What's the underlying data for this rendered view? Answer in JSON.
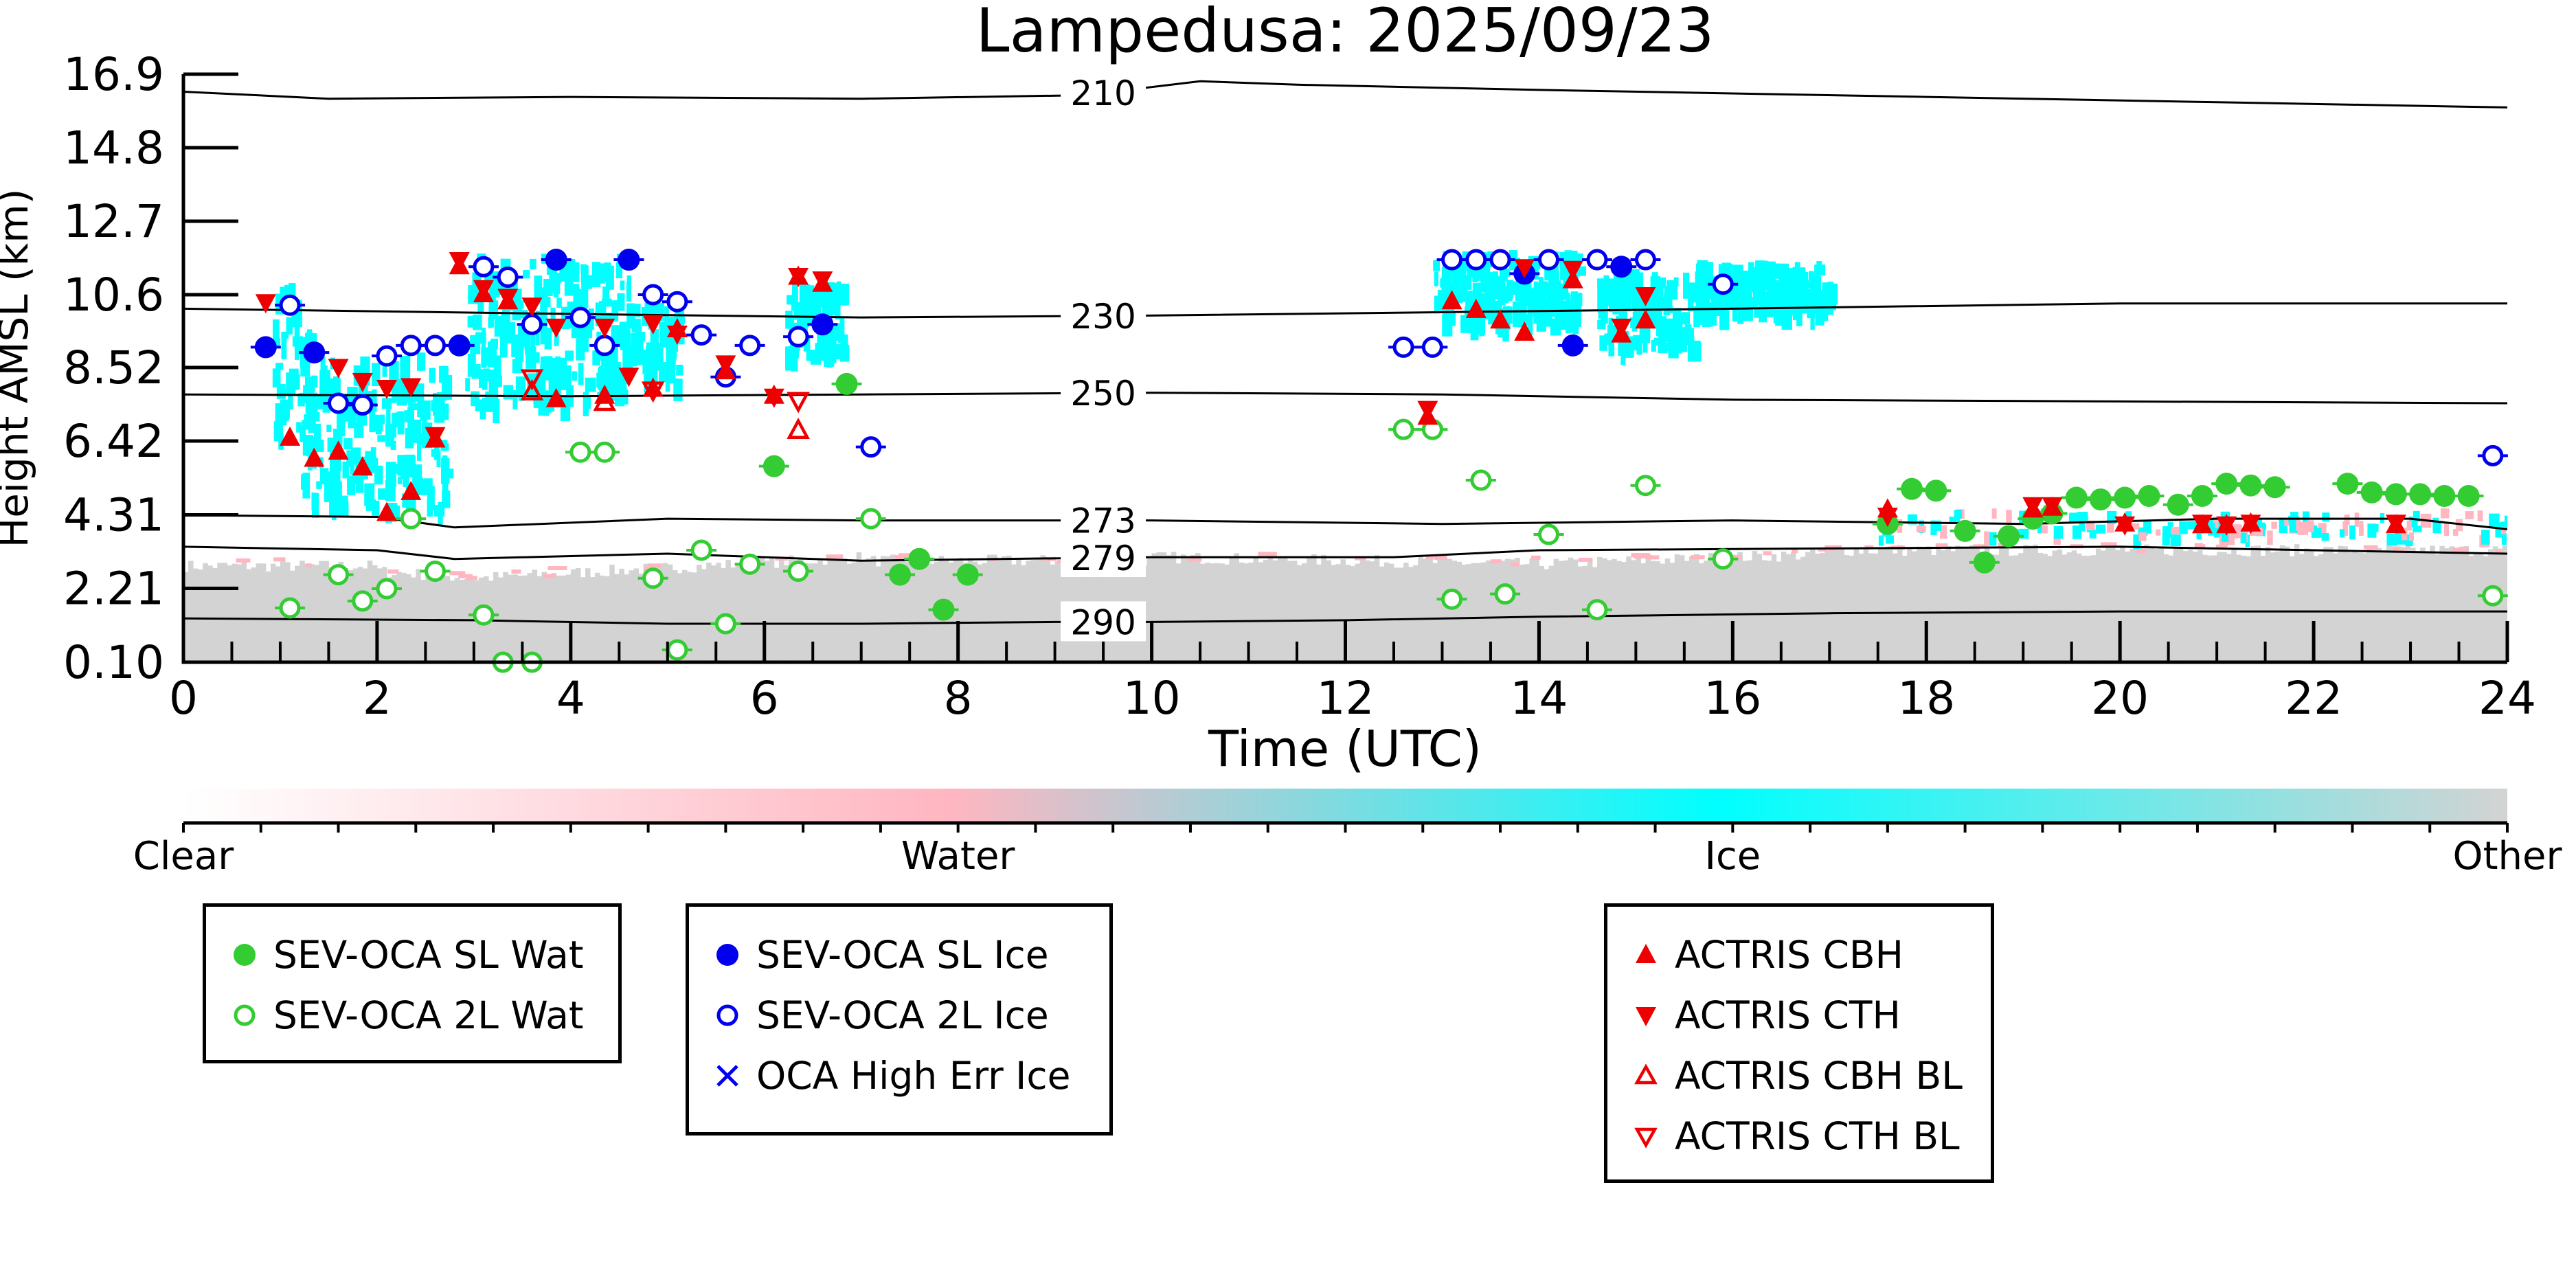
{
  "chart_data": {
    "type": "scatter",
    "title": "Lampedusa: 2025/09/23",
    "xlabel": "Time (UTC)",
    "ylabel": "Height AMSL (km)",
    "xlim": [
      0,
      24
    ],
    "ylim": [
      0.1,
      16.9
    ],
    "xticks": [
      0,
      2,
      4,
      6,
      8,
      10,
      12,
      14,
      16,
      18,
      20,
      22,
      24
    ],
    "yticks": [
      0.1,
      2.21,
      4.31,
      6.42,
      8.52,
      10.6,
      12.7,
      14.8,
      16.9
    ],
    "ytick_labels": [
      "0.10",
      "2.21",
      "4.31",
      "6.42",
      "8.52",
      "10.6",
      "12.7",
      "14.8",
      "16.9"
    ],
    "colorbar": {
      "labels": [
        "Clear",
        "Water",
        "Ice",
        "Other"
      ],
      "colors": [
        "#ffffff",
        "#ffb6c1",
        "#00ffff",
        "#d3d3d3"
      ]
    },
    "isotherms": [
      {
        "label": "210",
        "points": [
          [
            0,
            16.4
          ],
          [
            1.5,
            16.2
          ],
          [
            4,
            16.25
          ],
          [
            7,
            16.2
          ],
          [
            9.3,
            16.3
          ],
          [
            10.5,
            16.7
          ],
          [
            11.5,
            16.6
          ],
          [
            14,
            16.45
          ],
          [
            18,
            16.25
          ],
          [
            21,
            16.1
          ],
          [
            24,
            15.95
          ]
        ]
      },
      {
        "label": "230",
        "points": [
          [
            0,
            10.2
          ],
          [
            4,
            10.05
          ],
          [
            7,
            9.95
          ],
          [
            9.8,
            10.0
          ],
          [
            13,
            10.1
          ],
          [
            16,
            10.2
          ],
          [
            20,
            10.35
          ],
          [
            24,
            10.35
          ]
        ]
      },
      {
        "label": "250",
        "points": [
          [
            0,
            7.75
          ],
          [
            4,
            7.7
          ],
          [
            7,
            7.75
          ],
          [
            10,
            7.8
          ],
          [
            13,
            7.75
          ],
          [
            16,
            7.6
          ],
          [
            20,
            7.55
          ],
          [
            24,
            7.5
          ]
        ]
      },
      {
        "label": "273",
        "points": [
          [
            0,
            4.3
          ],
          [
            2,
            4.25
          ],
          [
            2.8,
            3.95
          ],
          [
            5,
            4.2
          ],
          [
            7,
            4.15
          ],
          [
            10,
            4.15
          ],
          [
            13,
            4.05
          ],
          [
            16,
            4.15
          ],
          [
            19,
            4.05
          ],
          [
            21,
            4.2
          ],
          [
            23,
            4.2
          ],
          [
            24,
            3.9
          ]
        ]
      },
      {
        "label": "279",
        "points": [
          [
            0,
            3.4
          ],
          [
            2,
            3.3
          ],
          [
            2.8,
            3.05
          ],
          [
            5,
            3.2
          ],
          [
            7,
            3.0
          ],
          [
            10,
            3.1
          ],
          [
            12.5,
            3.1
          ],
          [
            14,
            3.3
          ],
          [
            17,
            3.35
          ],
          [
            20,
            3.4
          ],
          [
            22,
            3.3
          ],
          [
            24,
            3.2
          ]
        ]
      },
      {
        "label": "290",
        "points": [
          [
            0,
            1.35
          ],
          [
            3,
            1.3
          ],
          [
            5,
            1.2
          ],
          [
            7,
            1.2
          ],
          [
            9,
            1.25
          ],
          [
            10,
            1.25
          ],
          [
            12,
            1.3
          ],
          [
            14,
            1.4
          ],
          [
            17,
            1.5
          ],
          [
            20,
            1.55
          ],
          [
            24,
            1.55
          ]
        ]
      }
    ],
    "series": [
      {
        "name": "SEV-OCA SL Wat",
        "color": "#33cc33",
        "marker": "filled-circle",
        "points": [
          [
            6.85,
            8.05
          ],
          [
            6.1,
            5.7
          ],
          [
            7.4,
            2.6
          ],
          [
            7.6,
            3.05
          ],
          [
            7.85,
            1.6
          ],
          [
            8.1,
            2.6
          ],
          [
            17.6,
            4.05
          ],
          [
            17.85,
            5.05
          ],
          [
            18.1,
            5.0
          ],
          [
            18.4,
            3.85
          ],
          [
            18.6,
            2.95
          ],
          [
            18.85,
            3.7
          ],
          [
            19.1,
            4.2
          ],
          [
            19.3,
            4.35
          ],
          [
            19.55,
            4.8
          ],
          [
            19.8,
            4.75
          ],
          [
            20.05,
            4.8
          ],
          [
            20.3,
            4.85
          ],
          [
            20.6,
            4.6
          ],
          [
            20.85,
            4.85
          ],
          [
            21.1,
            5.2
          ],
          [
            21.35,
            5.15
          ],
          [
            21.6,
            5.1
          ],
          [
            22.35,
            5.2
          ],
          [
            22.6,
            4.95
          ],
          [
            22.85,
            4.9
          ],
          [
            23.1,
            4.9
          ],
          [
            23.35,
            4.85
          ],
          [
            23.6,
            4.85
          ]
        ]
      },
      {
        "name": "SEV-OCA 2L Wat",
        "color": "#33cc33",
        "marker": "open-circle",
        "points": [
          [
            1.1,
            1.65
          ],
          [
            1.6,
            2.6
          ],
          [
            1.85,
            1.85
          ],
          [
            2.1,
            2.2
          ],
          [
            2.35,
            4.2
          ],
          [
            2.6,
            2.7
          ],
          [
            3.1,
            1.45
          ],
          [
            3.3,
            0.1
          ],
          [
            3.6,
            0.1
          ],
          [
            4.1,
            6.1
          ],
          [
            4.35,
            6.1
          ],
          [
            4.85,
            2.5
          ],
          [
            5.1,
            0.45
          ],
          [
            5.35,
            3.3
          ],
          [
            5.6,
            1.2
          ],
          [
            5.85,
            2.9
          ],
          [
            6.35,
            2.7
          ],
          [
            7.1,
            4.2
          ],
          [
            12.6,
            6.75
          ],
          [
            12.9,
            6.75
          ],
          [
            13.1,
            1.9
          ],
          [
            13.4,
            5.3
          ],
          [
            13.65,
            2.05
          ],
          [
            14.1,
            3.75
          ],
          [
            14.6,
            1.6
          ],
          [
            15.1,
            5.15
          ],
          [
            15.9,
            3.05
          ],
          [
            23.85,
            2.0
          ]
        ]
      },
      {
        "name": "SEV-OCA SL Ice",
        "color": "#0000ee",
        "marker": "filled-circle",
        "points": [
          [
            0.85,
            9.1
          ],
          [
            1.35,
            8.95
          ],
          [
            2.85,
            9.15
          ],
          [
            3.85,
            11.6
          ],
          [
            4.6,
            11.6
          ],
          [
            6.6,
            9.75
          ],
          [
            13.85,
            11.2
          ],
          [
            14.35,
            9.15
          ],
          [
            14.85,
            11.4
          ]
        ]
      },
      {
        "name": "SEV-OCA 2L Ice",
        "color": "#0000ee",
        "marker": "open-circle",
        "points": [
          [
            1.1,
            10.3
          ],
          [
            1.6,
            7.5
          ],
          [
            1.85,
            7.45
          ],
          [
            2.1,
            8.85
          ],
          [
            2.35,
            9.15
          ],
          [
            2.6,
            9.15
          ],
          [
            3.1,
            11.4
          ],
          [
            3.35,
            11.1
          ],
          [
            3.6,
            9.75
          ],
          [
            4.1,
            9.95
          ],
          [
            4.35,
            9.15
          ],
          [
            4.85,
            10.6
          ],
          [
            5.1,
            10.4
          ],
          [
            5.35,
            9.45
          ],
          [
            5.6,
            8.25
          ],
          [
            5.85,
            9.15
          ],
          [
            6.35,
            9.4
          ],
          [
            7.1,
            6.25
          ],
          [
            12.6,
            9.1
          ],
          [
            12.9,
            9.1
          ],
          [
            13.1,
            11.6
          ],
          [
            13.35,
            11.6
          ],
          [
            13.6,
            11.6
          ],
          [
            14.1,
            11.6
          ],
          [
            14.6,
            11.6
          ],
          [
            15.1,
            11.6
          ],
          [
            15.9,
            10.9
          ],
          [
            23.85,
            6.0
          ]
        ]
      },
      {
        "name": "OCA High Err Ice",
        "color": "#0000ee",
        "marker": "x",
        "points": []
      },
      {
        "name": "ACTRIS CBH",
        "color": "#ee0000",
        "marker": "filled-triangle-up",
        "points": [
          [
            1.1,
            6.5
          ],
          [
            1.35,
            5.9
          ],
          [
            1.6,
            6.1
          ],
          [
            1.85,
            5.65
          ],
          [
            2.1,
            4.35
          ],
          [
            2.35,
            4.95
          ],
          [
            2.6,
            6.45
          ],
          [
            2.85,
            11.4
          ],
          [
            3.1,
            10.6
          ],
          [
            3.35,
            10.4
          ],
          [
            3.85,
            7.6
          ],
          [
            4.35,
            7.7
          ],
          [
            4.85,
            7.9
          ],
          [
            5.1,
            9.6
          ],
          [
            5.6,
            8.4
          ],
          [
            6.1,
            7.7
          ],
          [
            6.35,
            11.1
          ],
          [
            6.6,
            10.9
          ],
          [
            12.85,
            7.1
          ],
          [
            13.1,
            10.4
          ],
          [
            13.35,
            10.15
          ],
          [
            13.6,
            9.85
          ],
          [
            13.85,
            9.5
          ],
          [
            14.35,
            11.0
          ],
          [
            14.85,
            9.45
          ],
          [
            15.1,
            9.85
          ],
          [
            17.6,
            4.45
          ],
          [
            19.1,
            4.45
          ],
          [
            19.3,
            4.5
          ],
          [
            20.05,
            4.05
          ],
          [
            20.85,
            4.0
          ],
          [
            21.1,
            4.0
          ],
          [
            21.35,
            4.05
          ],
          [
            22.85,
            4.0
          ]
        ]
      },
      {
        "name": "ACTRIS CTH",
        "color": "#ee0000",
        "marker": "filled-triangle-down",
        "points": [
          [
            0.85,
            10.4
          ],
          [
            1.6,
            8.55
          ],
          [
            1.85,
            8.15
          ],
          [
            2.1,
            7.95
          ],
          [
            2.35,
            8.0
          ],
          [
            2.6,
            6.6
          ],
          [
            2.85,
            11.6
          ],
          [
            3.1,
            10.8
          ],
          [
            3.35,
            10.55
          ],
          [
            3.6,
            10.3
          ],
          [
            3.85,
            9.7
          ],
          [
            4.35,
            9.7
          ],
          [
            4.6,
            8.3
          ],
          [
            4.85,
            9.8
          ],
          [
            5.1,
            9.5
          ],
          [
            5.6,
            8.65
          ],
          [
            6.1,
            7.7
          ],
          [
            6.35,
            11.15
          ],
          [
            6.6,
            11.05
          ],
          [
            12.85,
            7.35
          ],
          [
            13.85,
            11.4
          ],
          [
            14.35,
            11.35
          ],
          [
            14.85,
            9.7
          ],
          [
            15.1,
            10.6
          ],
          [
            17.6,
            4.3
          ],
          [
            19.1,
            4.6
          ],
          [
            19.3,
            4.6
          ],
          [
            20.05,
            4.05
          ],
          [
            20.85,
            4.1
          ],
          [
            21.1,
            4.05
          ],
          [
            21.35,
            4.1
          ],
          [
            22.85,
            4.1
          ]
        ]
      },
      {
        "name": "ACTRIS CBH BL",
        "color": "#ee0000",
        "marker": "open-triangle-up",
        "points": [
          [
            3.6,
            7.8
          ],
          [
            4.35,
            7.5
          ],
          [
            6.35,
            6.7
          ]
        ]
      },
      {
        "name": "ACTRIS CTH BL",
        "color": "#ee0000",
        "marker": "open-triangle-down",
        "points": [
          [
            3.6,
            8.25
          ],
          [
            4.85,
            7.9
          ],
          [
            6.35,
            7.6
          ]
        ]
      }
    ]
  },
  "legend_groups": [
    {
      "labels": [
        "SEV-OCA SL Wat",
        "SEV-OCA 2L Wat"
      ]
    },
    {
      "labels": [
        "SEV-OCA SL Ice",
        "SEV-OCA 2L Ice",
        "OCA High Err Ice"
      ]
    },
    {
      "labels": [
        "ACTRIS CBH",
        "ACTRIS CTH",
        "ACTRIS CBH BL",
        "ACTRIS CTH BL"
      ]
    }
  ]
}
